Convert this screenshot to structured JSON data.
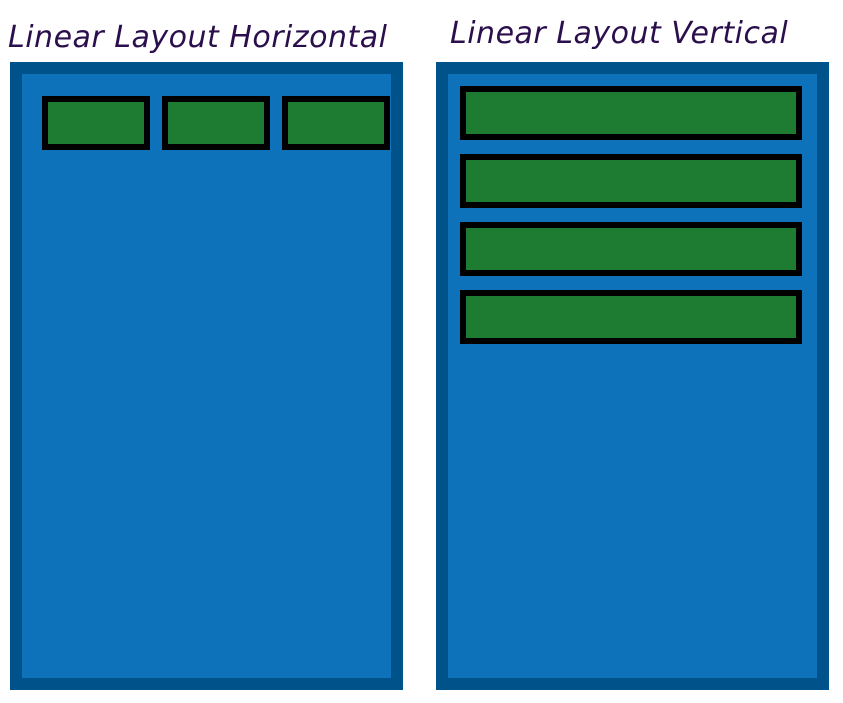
{
  "colors": {
    "title_text": "#2b0f4d",
    "device_frame": "#00528a",
    "device_fill": "#0e72bb",
    "child_fill": "#1e7b32",
    "child_border": "#000000"
  },
  "horizontal": {
    "title": "Linear Layout Horizontal",
    "child_count": 3
  },
  "vertical": {
    "title": "Linear Layout Vertical",
    "child_count": 4
  }
}
